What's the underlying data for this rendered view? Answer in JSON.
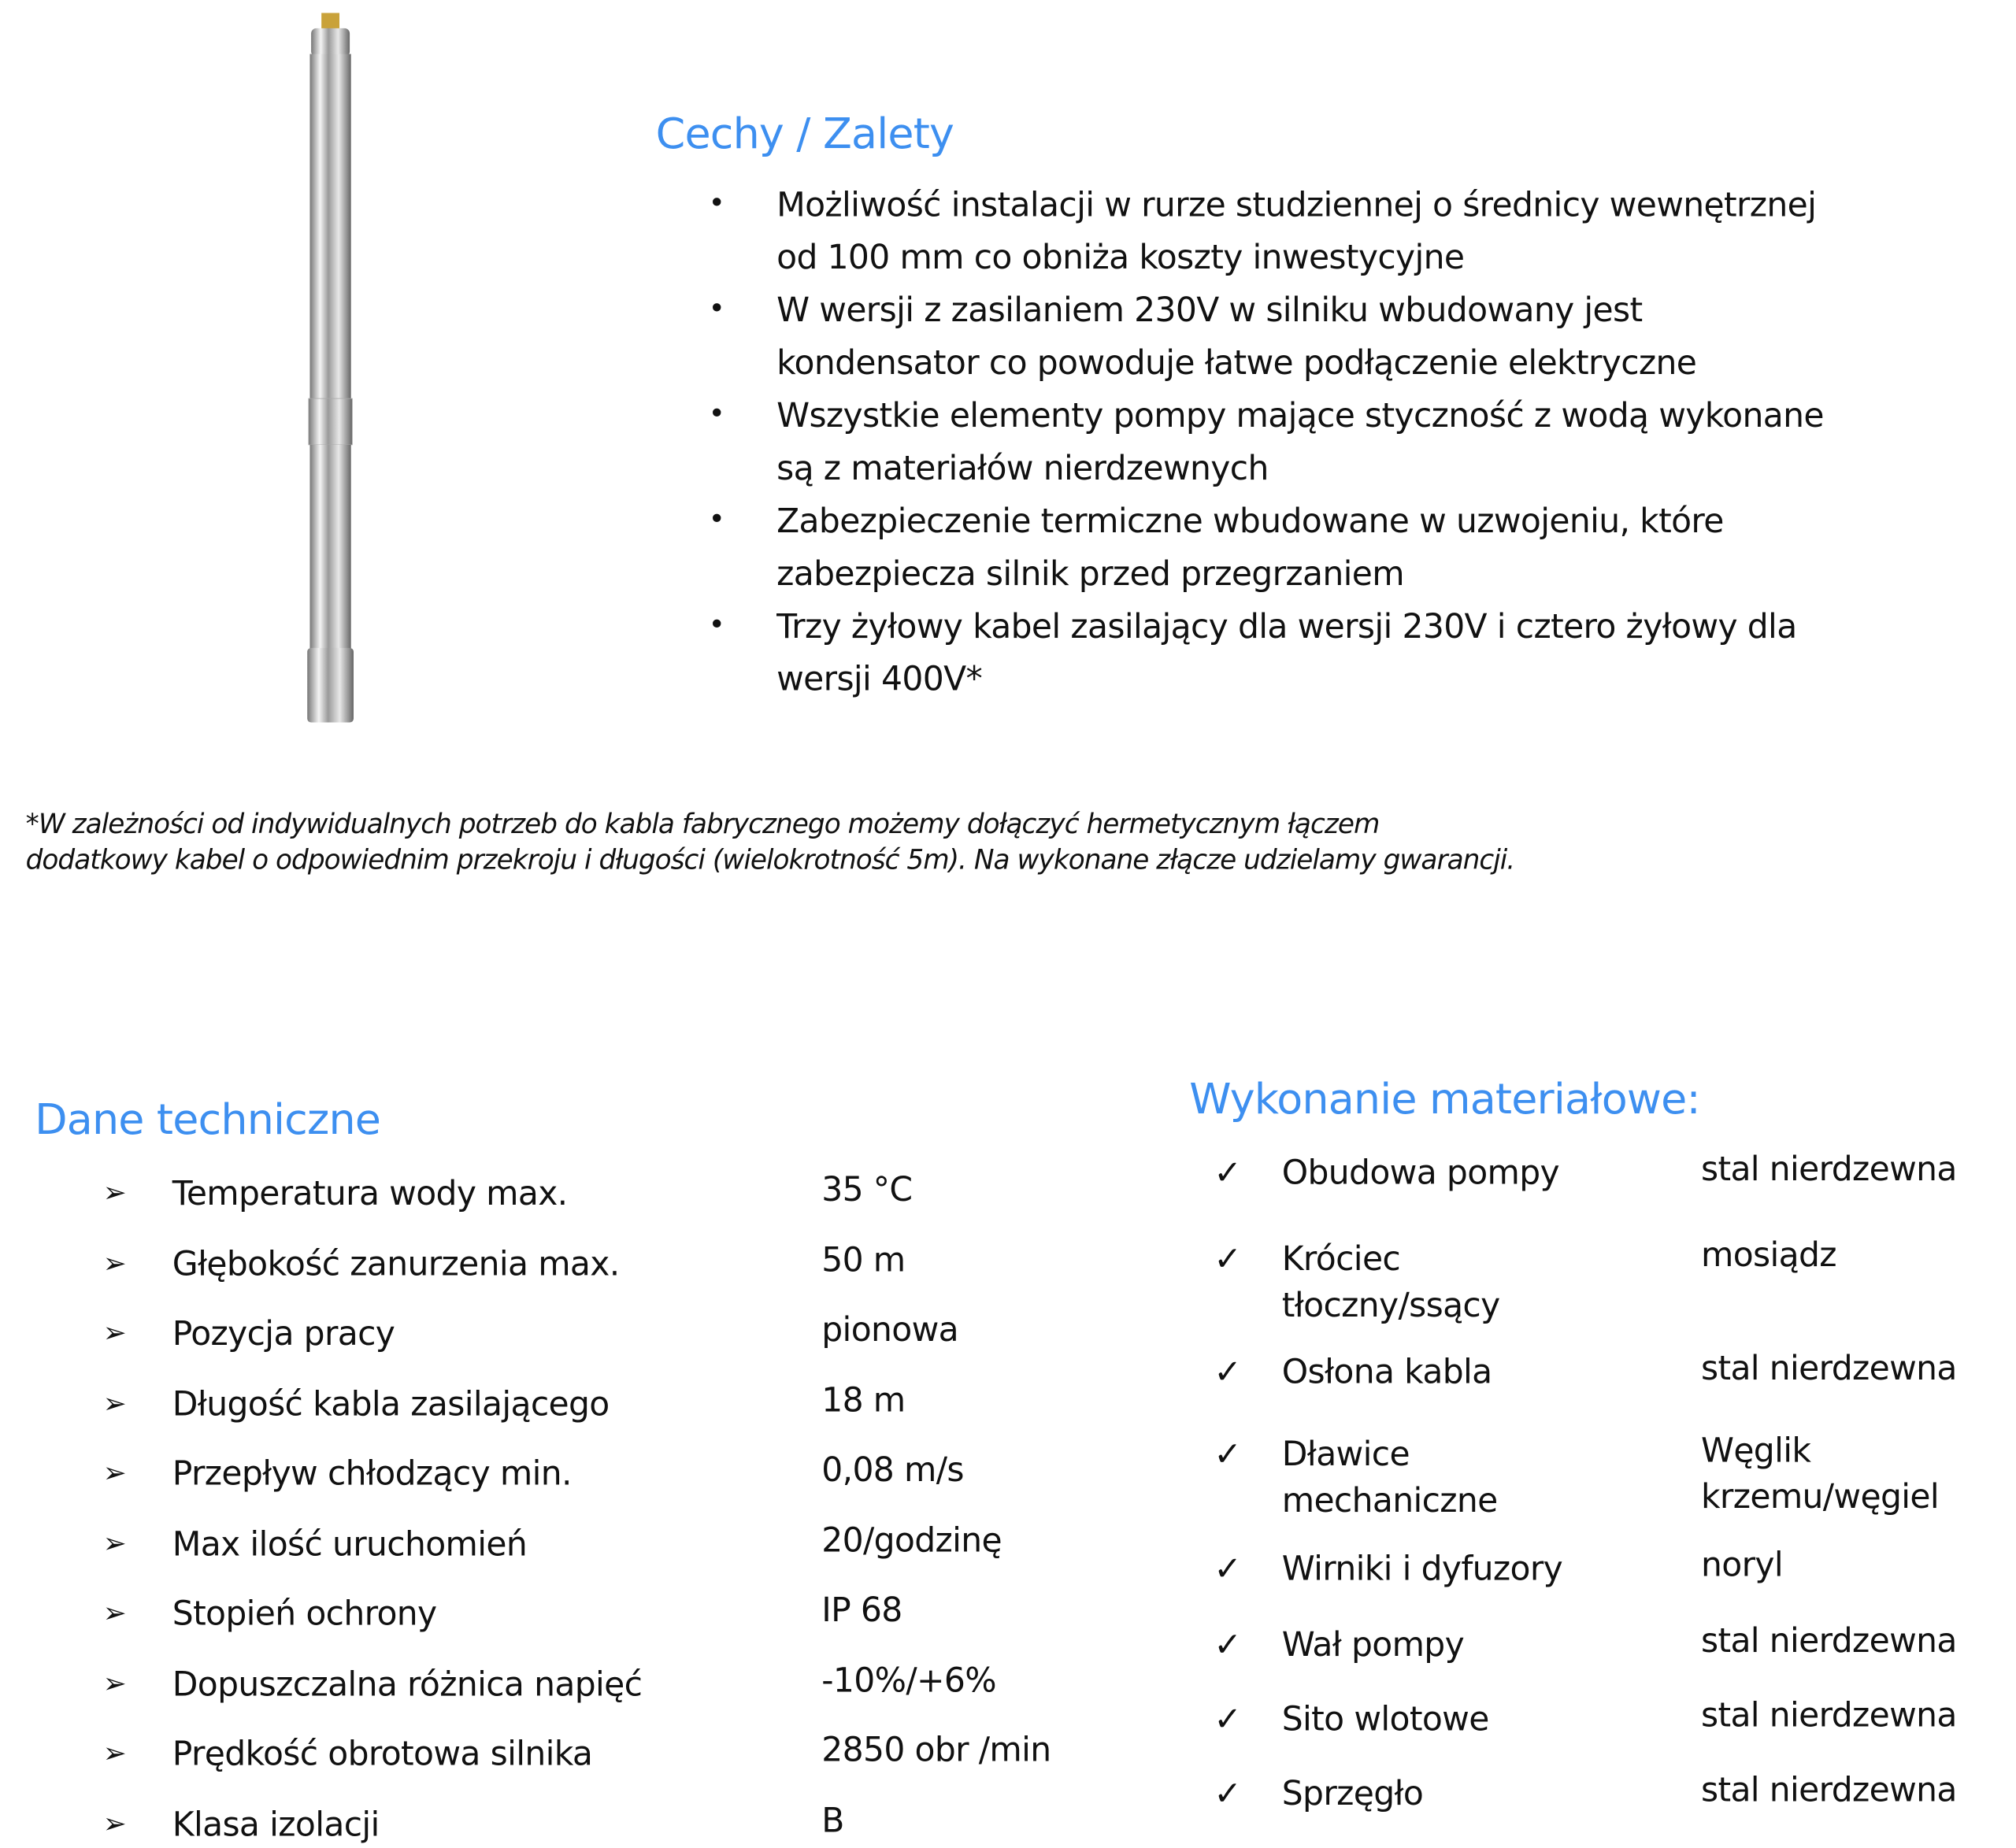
{
  "features": {
    "title": "Cechy / Zalety",
    "items": [
      [
        "Możliwość instalacji w rurze studziennej o średnicy wewnętrznej",
        "od 100 mm co obniża koszty inwestycyjne"
      ],
      [
        "W wersji z zasilaniem 230V  w silniku wbudowany jest",
        "kondensator co powoduje łatwe podłączenie elektryczne"
      ],
      [
        "Wszystkie elementy pompy mające styczność z wodą wykonane",
        "są z materiałów nierdzewnych"
      ],
      [
        "Zabezpieczenie termiczne wbudowane w uzwojeniu,  które",
        "zabezpiecza silnik przed  przegrzaniem"
      ],
      [
        "Trzy żyłowy kabel zasilający dla wersji 230V  i cztero żyłowy dla",
        "wersji 400V*"
      ]
    ]
  },
  "footnote": [
    "*W zależności od indywidualnych potrzeb do kabla fabrycznego możemy dołączyć hermetycznym łączem",
    "dodatkowy kabel o odpowiednim przekroju i długości (wielokrotność 5m). Na wykonane złącze  udzielamy gwarancji."
  ],
  "tech": {
    "title": "Dane techniczne",
    "rows": [
      {
        "label": "Temperatura wody max.",
        "value": "35 °C"
      },
      {
        "label": "Głębokość zanurzenia max.",
        "value": "50  m"
      },
      {
        "label": "Pozycja pracy",
        "value": "pionowa"
      },
      {
        "label": "Długość kabla zasilającego",
        "value": "18 m"
      },
      {
        "label": "Przepływ chłodzący min.",
        "value": "0,08 m/s"
      },
      {
        "label": "Max ilość uruchomień",
        "value": "20/godzinę"
      },
      {
        "label": "Stopień ochrony",
        "value": "IP   68"
      },
      {
        "label": "Dopuszczalna różnica napięć",
        "value": "-10%/+6%"
      },
      {
        "label": "Prędkość obrotowa silnika",
        "value": "2850 obr /min"
      },
      {
        "label": "Klasa izolacji",
        "value": "B"
      }
    ]
  },
  "materials": {
    "title": "Wykonanie materiałowe:",
    "rows": [
      {
        "label": [
          "Obudowa pompy"
        ],
        "value": [
          "stal nierdzewna"
        ]
      },
      {
        "label": [
          "Króciec",
          "tłoczny/ssący"
        ],
        "value": [
          "mosiądz"
        ]
      },
      {
        "label": [
          "Osłona kabla"
        ],
        "value": [
          "stal nierdzewna"
        ]
      },
      {
        "label": [
          "Dławice",
          "mechaniczne"
        ],
        "value": [
          "Węglik",
          "krzemu/węgiel"
        ]
      },
      {
        "label": [
          "Wirniki i dyfuzory"
        ],
        "value": [
          "noryl"
        ]
      },
      {
        "label": [
          "Wał pompy"
        ],
        "value": [
          "stal nierdzewna"
        ]
      },
      {
        "label": [
          "Sito wlotowe"
        ],
        "value": [
          "stal nierdzewna"
        ]
      },
      {
        "label": [
          "Sprzęgło"
        ],
        "value": [
          "stal nierdzewna"
        ]
      }
    ]
  },
  "colors": {
    "heading": "#3d8ff0"
  },
  "icons": {
    "bullet": "bullet-dot",
    "tech": "arrowhead-icon",
    "materials": "check-icon"
  }
}
